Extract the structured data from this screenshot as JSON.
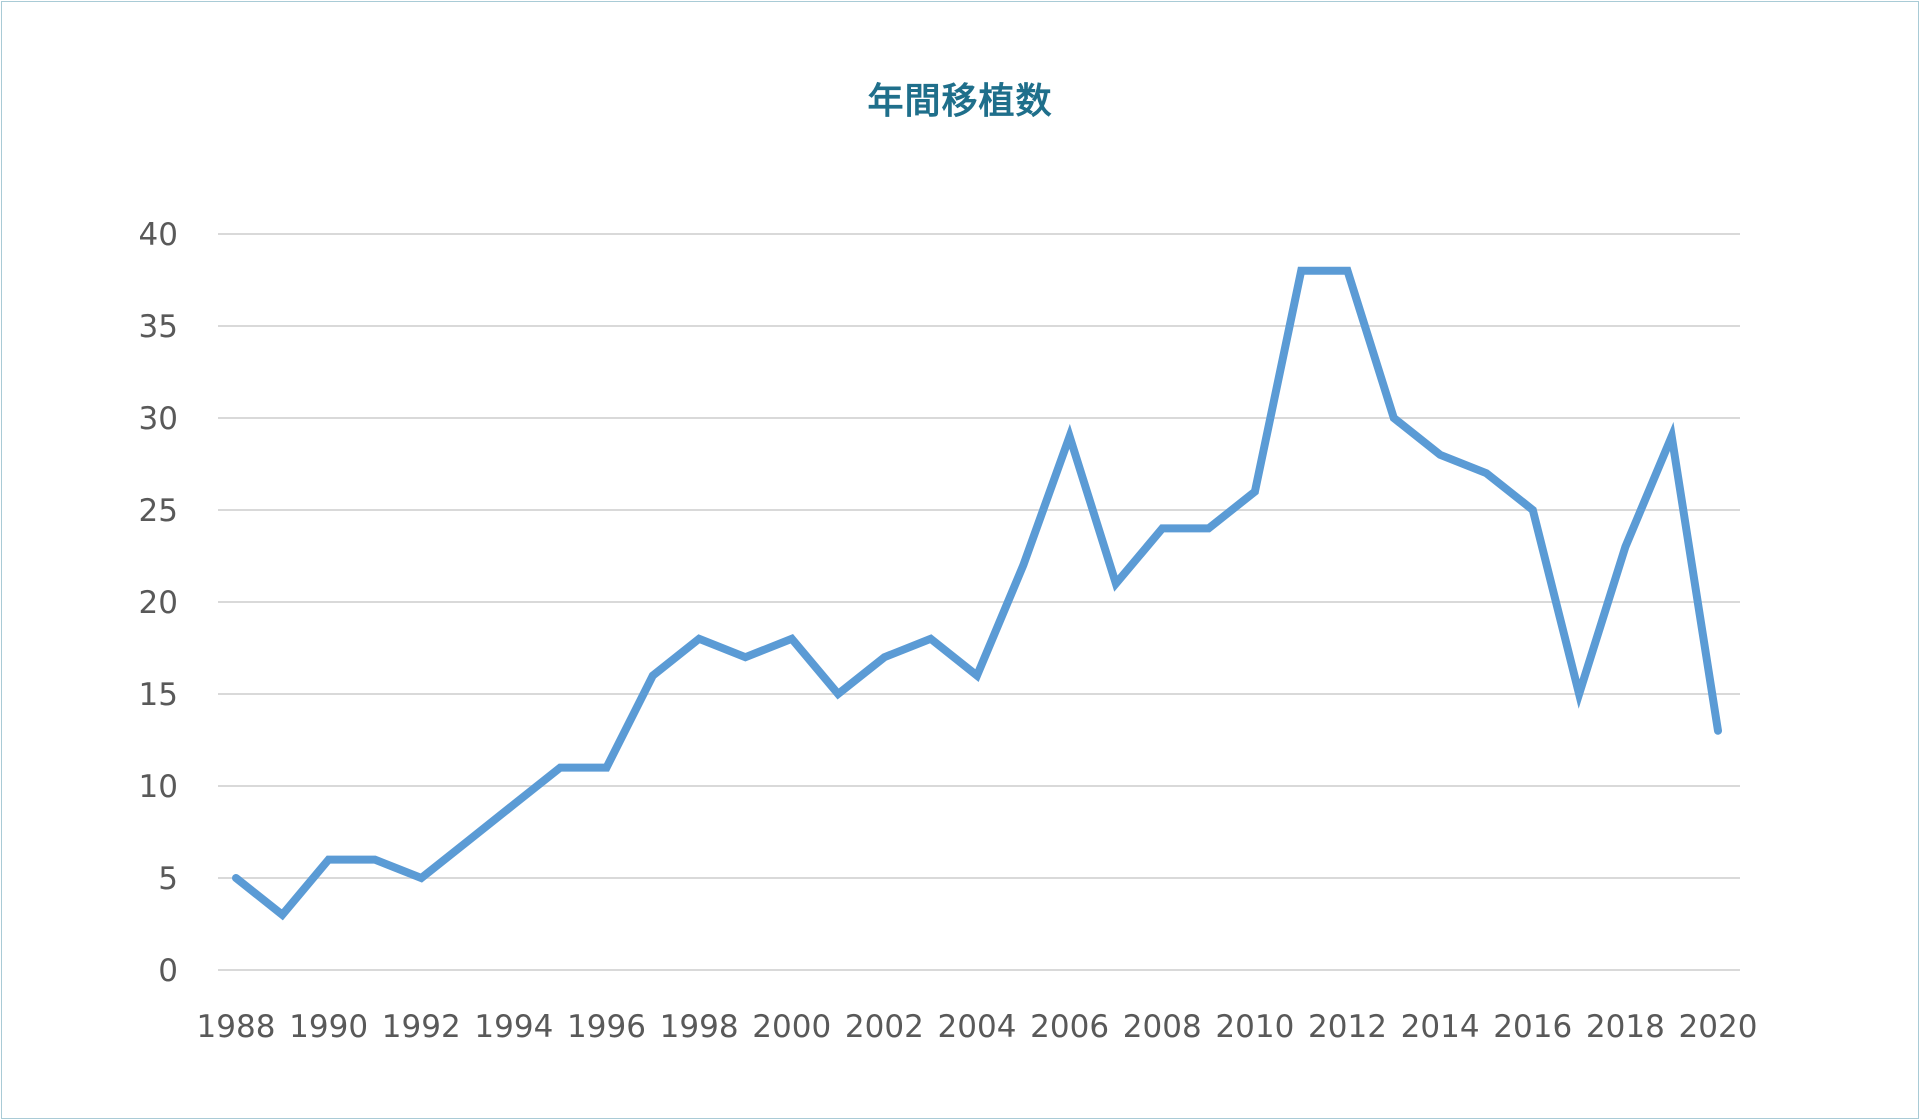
{
  "chart_data": {
    "type": "line",
    "title": "年間移植数",
    "xlabel": "",
    "ylabel": "",
    "ylim": [
      0,
      40
    ],
    "y_ticks": [
      "0",
      "5",
      "10",
      "15",
      "20",
      "25",
      "30",
      "35",
      "40"
    ],
    "x_tick_labels": [
      "1988",
      "1990",
      "1992",
      "1994",
      "1996",
      "1998",
      "2000",
      "2002",
      "2004",
      "2006",
      "2008",
      "2010",
      "2012",
      "2014",
      "2016",
      "2018",
      "2020"
    ],
    "grid": true,
    "legend": "none",
    "series": [
      {
        "color": "#5b9bd5",
        "x": [
          1988,
          1989,
          1990,
          1991,
          1992,
          1993,
          1994,
          1995,
          1996,
          1997,
          1998,
          1999,
          2000,
          2001,
          2002,
          2003,
          2004,
          2005,
          2006,
          2007,
          2008,
          2009,
          2010,
          2011,
          2012,
          2013,
          2014,
          2015,
          2016,
          2017,
          2018,
          2019,
          2020
        ],
        "values": [
          5,
          3,
          6,
          6,
          5,
          7,
          9,
          11,
          11,
          16,
          18,
          17,
          18,
          15,
          17,
          18,
          16,
          22,
          29,
          21,
          24,
          24,
          26,
          38,
          38,
          30,
          28,
          27,
          25,
          15,
          23,
          29,
          13
        ]
      }
    ]
  }
}
